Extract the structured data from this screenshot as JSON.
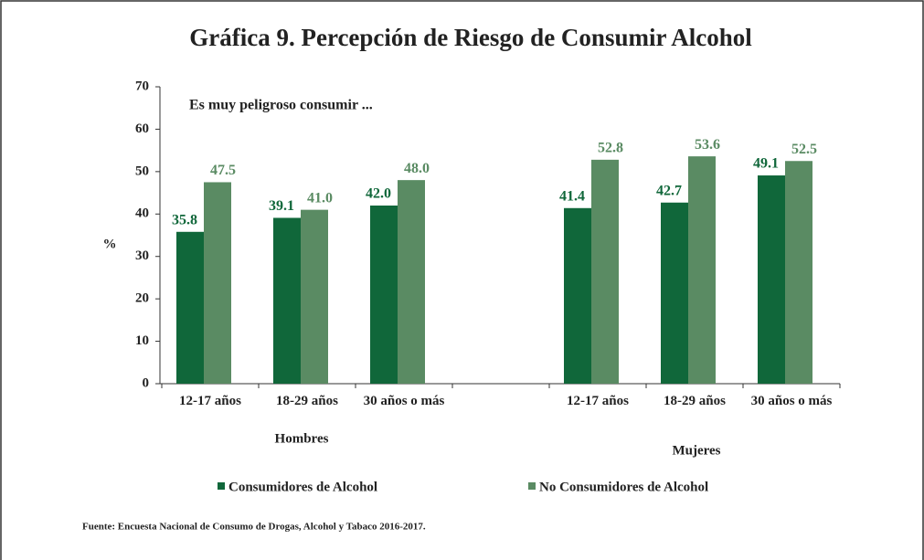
{
  "chart_data": {
    "type": "bar",
    "title": "Gráfica 9. Percepción de Riesgo de Consumir Alcohol",
    "annotation": "Es muy peligroso consumir ...",
    "y_label": "%",
    "group_labels": [
      "Hombres",
      "Mujeres"
    ],
    "categories": [
      "12-17 años",
      "18-29 años",
      "30 años o más",
      null,
      "12-17 años",
      "18-29 años",
      "30 años o más"
    ],
    "series": [
      {
        "name": "Consumidores de Alcohol",
        "color": "#10673a",
        "values": [
          35.8,
          39.1,
          42.0,
          null,
          41.4,
          42.7,
          49.1
        ],
        "value_labels": [
          "35.8",
          "39.1",
          "42.0",
          null,
          "41.4",
          "42.7",
          "49.1"
        ]
      },
      {
        "name": "No Consumidores de Alcohol",
        "color": "#5a8b63",
        "values": [
          47.5,
          41.0,
          48.0,
          null,
          52.8,
          53.6,
          52.5
        ],
        "value_labels": [
          "47.5",
          "41.0",
          "48.0",
          null,
          "52.8",
          "53.6",
          "52.5"
        ]
      }
    ],
    "ylim": [
      0,
      70
    ],
    "yticks": [
      0,
      10,
      20,
      30,
      40,
      50,
      60,
      70
    ],
    "source": "Fuente: Encuesta Nacional de Consumo de Drogas, Alcohol y Tabaco 2016-2017."
  }
}
